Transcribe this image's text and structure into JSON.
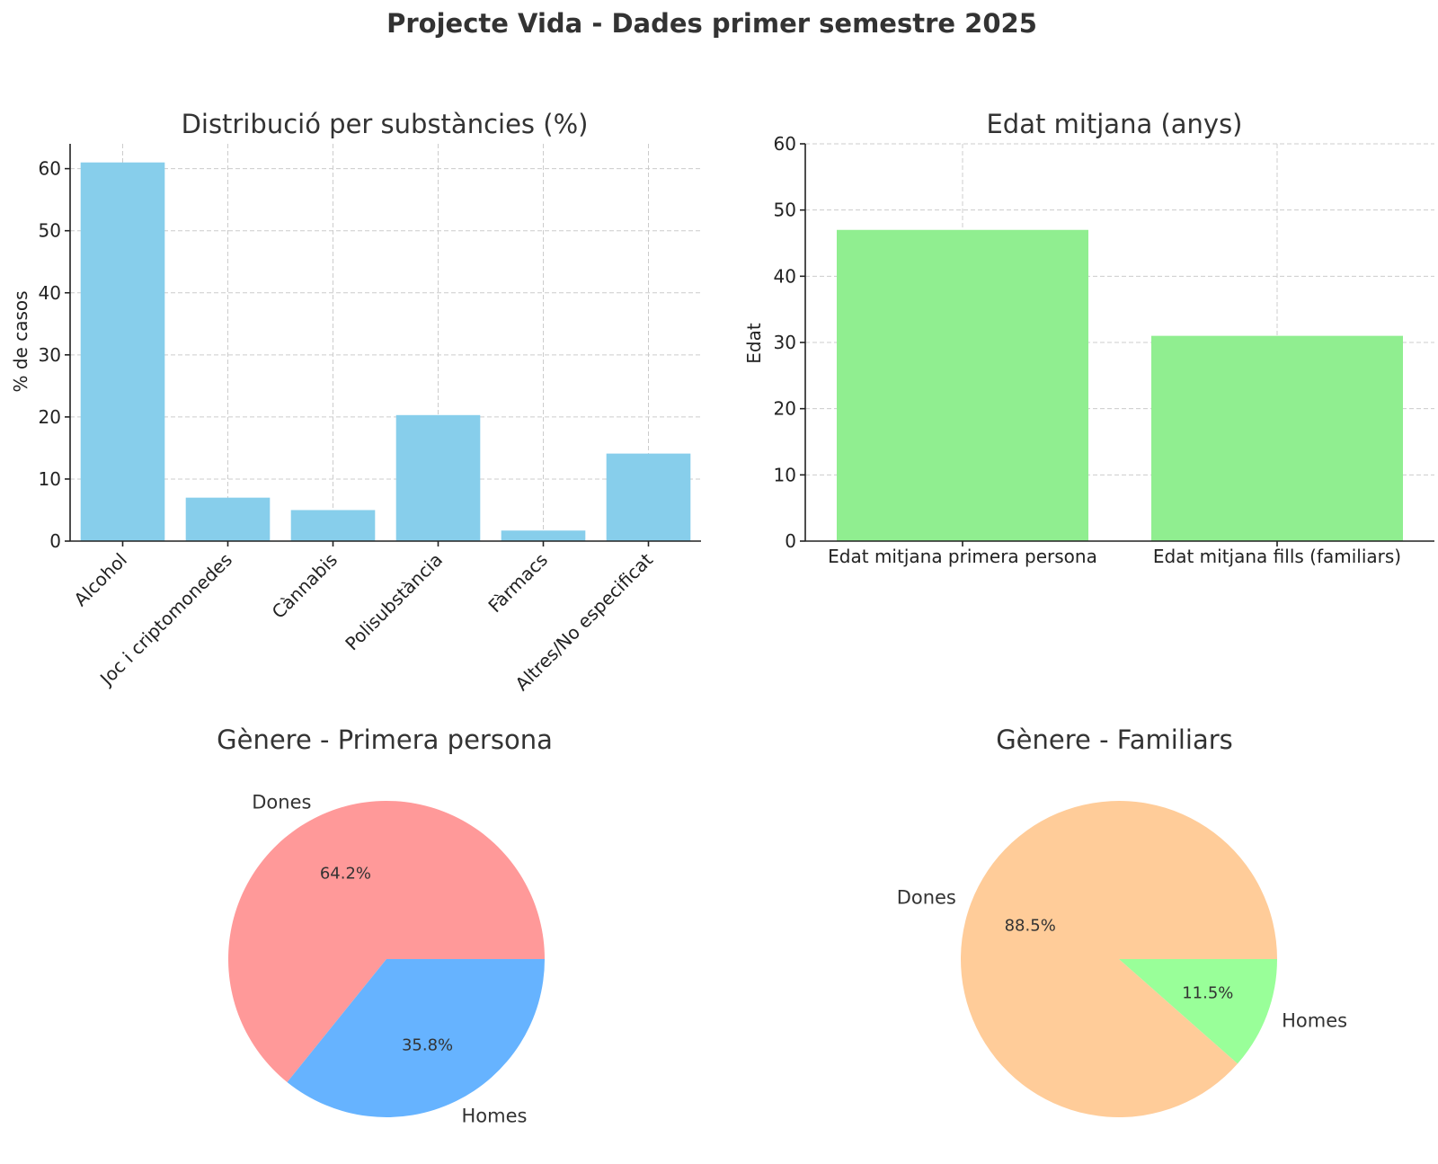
{
  "title": "Projecte Vida - Dades primer semestre 2025",
  "chart_data": [
    {
      "type": "bar",
      "title": "Distribució per substàncies (%)",
      "xlabel": "",
      "ylabel": "% de casos",
      "ylim": [
        0,
        64
      ],
      "yticks": [
        0,
        10,
        20,
        30,
        40,
        50,
        60
      ],
      "grid": true,
      "color": "#87ceeb",
      "categories": [
        "Alcohol",
        "Joc i criptomonedes",
        "Cànnabis",
        "Polisubstància",
        "Fàrmacs",
        "Altres/No especificat"
      ],
      "values": [
        61,
        7,
        5,
        20.3,
        1.7,
        14.1
      ]
    },
    {
      "type": "bar",
      "title": "Edat mitjana (anys)",
      "xlabel": "",
      "ylabel": "Edat",
      "ylim": [
        0,
        60
      ],
      "yticks": [
        0,
        10,
        20,
        30,
        40,
        50,
        60
      ],
      "grid": true,
      "color": "#90ee90",
      "categories": [
        "Edat mitjana primera persona",
        "Edat mitjana fills (familiars)"
      ],
      "values": [
        47,
        31
      ]
    },
    {
      "type": "pie",
      "title": "Gènere - Primera persona",
      "labels": [
        "Dones",
        "Homes"
      ],
      "values": [
        64.2,
        35.8
      ],
      "pct_labels": [
        "64.2%",
        "35.8%"
      ],
      "colors": [
        "#ff9999",
        "#66b3ff"
      ]
    },
    {
      "type": "pie",
      "title": "Gènere - Familiars",
      "labels": [
        "Dones",
        "Homes"
      ],
      "values": [
        88.5,
        11.5
      ],
      "pct_labels": [
        "88.5%",
        "11.5%"
      ],
      "colors": [
        "#ffcc99",
        "#99ff99"
      ]
    }
  ]
}
